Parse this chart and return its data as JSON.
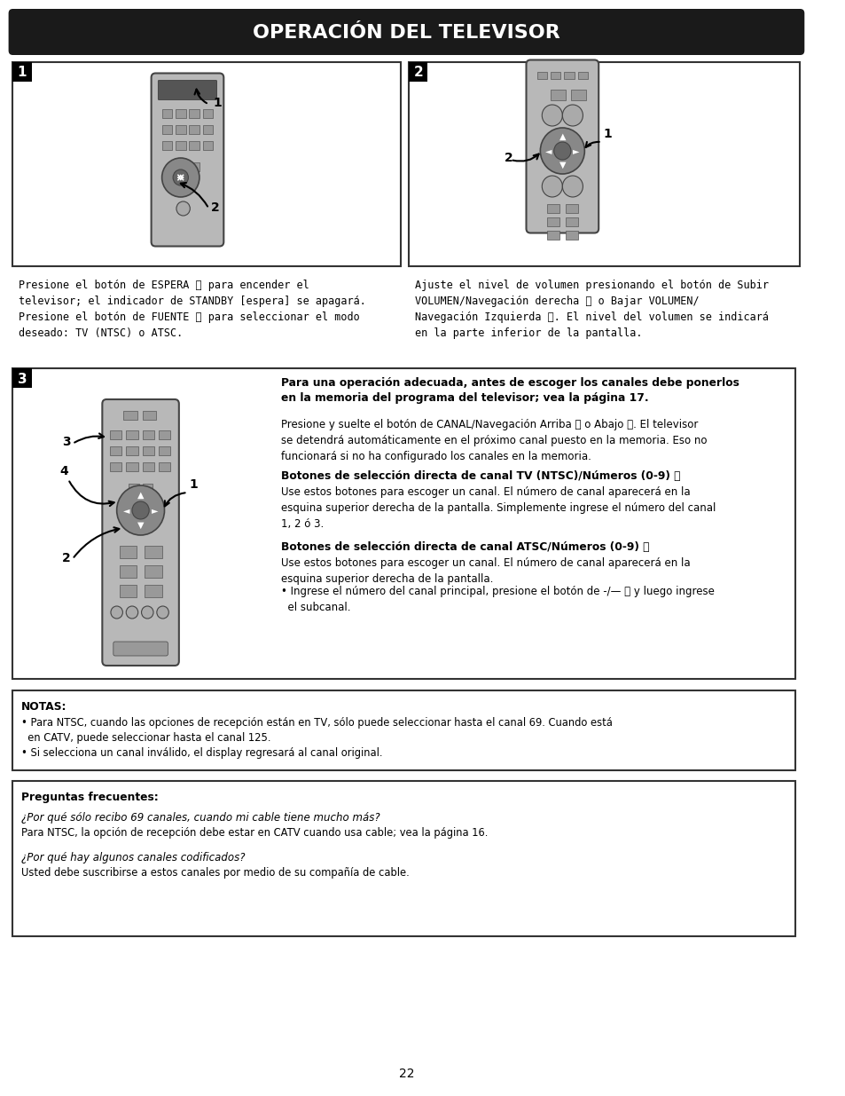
{
  "title": "OPERACIÓN DEL TELEVISOR",
  "page_number": "22",
  "background_color": "#ffffff",
  "title_bg_color": "#1a1a1a",
  "title_text_color": "#ffffff",
  "section1_label": "1",
  "section2_label": "2",
  "section3_label": "3",
  "text_section1": "Presione el botón de ESPERA Θ para encender el televisor; el indicador de STANDBY [espera] se apagará.\nPresione el botón de FUENTE Θ para seleccionar el modo deseado: TV (NTSC) o ATSC.",
  "text_section2": "Ajuste el nivel de volumen presionando el botón de Subir VOLUMEN/Navegación derecha Θ o Bajar VOLUMEN/Navegación Izquierda Θ. El nivel del volumen se indicará en la parte inferior de la pantalla.",
  "text_section3_bold": "Para una operación adecuada, antes de escoger los canales debe ponerlos en la memoria del programa del televisor; vea la página 17.",
  "text_section3_normal": "Presione y suelte el botón de CANAL/Navegación Arriba Θ o Abajo Θ. El televisor se detendrá automáticamente en el próximo canal puesto en la memoria. Eso no funcionará si no ha configurado los canales en la memoria.",
  "text_section3_bold2": "Botones de selección directa de canal TV (NTSC)/Números (0-9) Θ",
  "text_section3_normal2": "Use estos botones para escoger un canal. El número de canal aparecerá en la esquina superior derecha de la pantalla. Simplemente ingrese el número del canal 1, 2 ó 3.",
  "text_section3_bold3": "Botones de selección directa de canal ATSC/Números (0-9) Θ",
  "text_section3_normal3": "Use estos botones para escoger un canal. El número de canal aparecerá en la esquina superior derecha de la pantalla.",
  "text_section3_bullet": "• Ingrese el número del canal principal, presione el botón de -/— Θ y luego ingrese el subcanal.",
  "notas_title": "NOTAS:",
  "notas_bullet1": "• Para NTSC, cuando las opciones de recepción están en TV, sólo puede seleccionar hasta el canal 69. Cuando está\n  en CATV, puede seleccionar hasta el canal 125.",
  "notas_bullet2": "• Si selecciona un canal inválido, el display regresará al canal original.",
  "faq_title": "Preguntas frecuentes:",
  "faq_q1": "¿Por qué sólo recibo 69 canales, cuando mi cable tiene mucho más?",
  "faq_a1": "Para NTSC, la opción de recepción debe estar en CATV cuando usa cable; vea la página 16.",
  "faq_q2": "¿Por qué hay algunos canales codificados?",
  "faq_a2": "Usted debe suscribirse a estos canales por medio de su compañía de cable.",
  "remote_color": "#b0b0b0",
  "border_color": "#555555"
}
